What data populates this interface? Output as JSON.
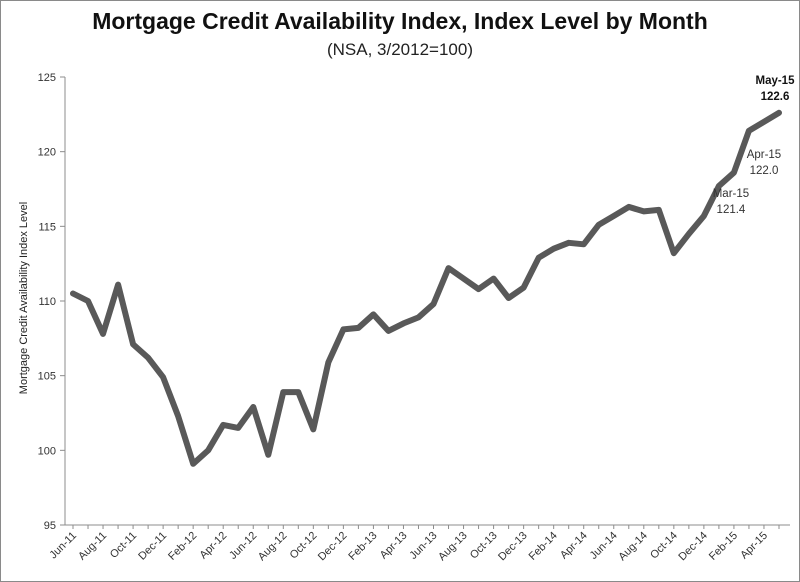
{
  "chart_data": {
    "type": "line",
    "title": "Mortgage Credit Availability Index, Index Level by Month",
    "subtitle": "(NSA, 3/2012=100)",
    "ylabel": "Mortgage Credit Availability Index Level",
    "xlabel": "",
    "ylim": [
      95,
      125
    ],
    "yticks": [
      95,
      100,
      105,
      110,
      115,
      120,
      125
    ],
    "grid": false,
    "x": [
      "Jun-11",
      "Jul-11",
      "Aug-11",
      "Sep-11",
      "Oct-11",
      "Nov-11",
      "Dec-11",
      "Jan-12",
      "Feb-12",
      "Mar-12",
      "Apr-12",
      "May-12",
      "Jun-12",
      "Jul-12",
      "Aug-12",
      "Sep-12",
      "Oct-12",
      "Nov-12",
      "Dec-12",
      "Jan-13",
      "Feb-13",
      "Mar-13",
      "Apr-13",
      "May-13",
      "Jun-13",
      "Jul-13",
      "Aug-13",
      "Sep-13",
      "Oct-13",
      "Nov-13",
      "Dec-13",
      "Jan-14",
      "Feb-14",
      "Mar-14",
      "Apr-14",
      "May-14",
      "Jun-14",
      "Jul-14",
      "Aug-14",
      "Sep-14",
      "Oct-14",
      "Nov-14",
      "Dec-14",
      "Jan-15",
      "Feb-15",
      "Mar-15",
      "Apr-15",
      "May-15"
    ],
    "xtick_labels": [
      "Jun-11",
      "Aug-11",
      "Oct-11",
      "Dec-11",
      "Feb-12",
      "Apr-12",
      "Jun-12",
      "Aug-12",
      "Oct-12",
      "Dec-12",
      "Feb-13",
      "Apr-13",
      "Jun-13",
      "Aug-13",
      "Oct-13",
      "Dec-13",
      "Feb-14",
      "Apr-14",
      "Jun-14",
      "Aug-14",
      "Oct-14",
      "Dec-14",
      "Feb-15",
      "Apr-15"
    ],
    "series": [
      {
        "color": "#595959",
        "values": [
          110.5,
          110.0,
          107.8,
          111.1,
          107.1,
          106.2,
          104.9,
          102.3,
          99.1,
          100.0,
          101.7,
          101.5,
          102.9,
          99.7,
          103.9,
          103.9,
          101.4,
          105.9,
          108.1,
          108.2,
          109.1,
          108.0,
          108.5,
          108.9,
          109.8,
          112.2,
          111.5,
          110.8,
          111.5,
          110.2,
          110.9,
          112.9,
          113.5,
          113.9,
          113.8,
          115.1,
          115.7,
          116.3,
          116.0,
          116.1,
          113.2,
          114.5,
          115.7,
          117.7,
          118.6,
          121.4,
          122.0,
          122.6
        ]
      }
    ],
    "annotations": [
      {
        "label": "May-15",
        "value": "122.6",
        "bold": true
      },
      {
        "label": "Apr-15",
        "value": "122.0",
        "bold": false
      },
      {
        "label": "Mar-15",
        "value": "121.4",
        "bold": false
      }
    ]
  }
}
